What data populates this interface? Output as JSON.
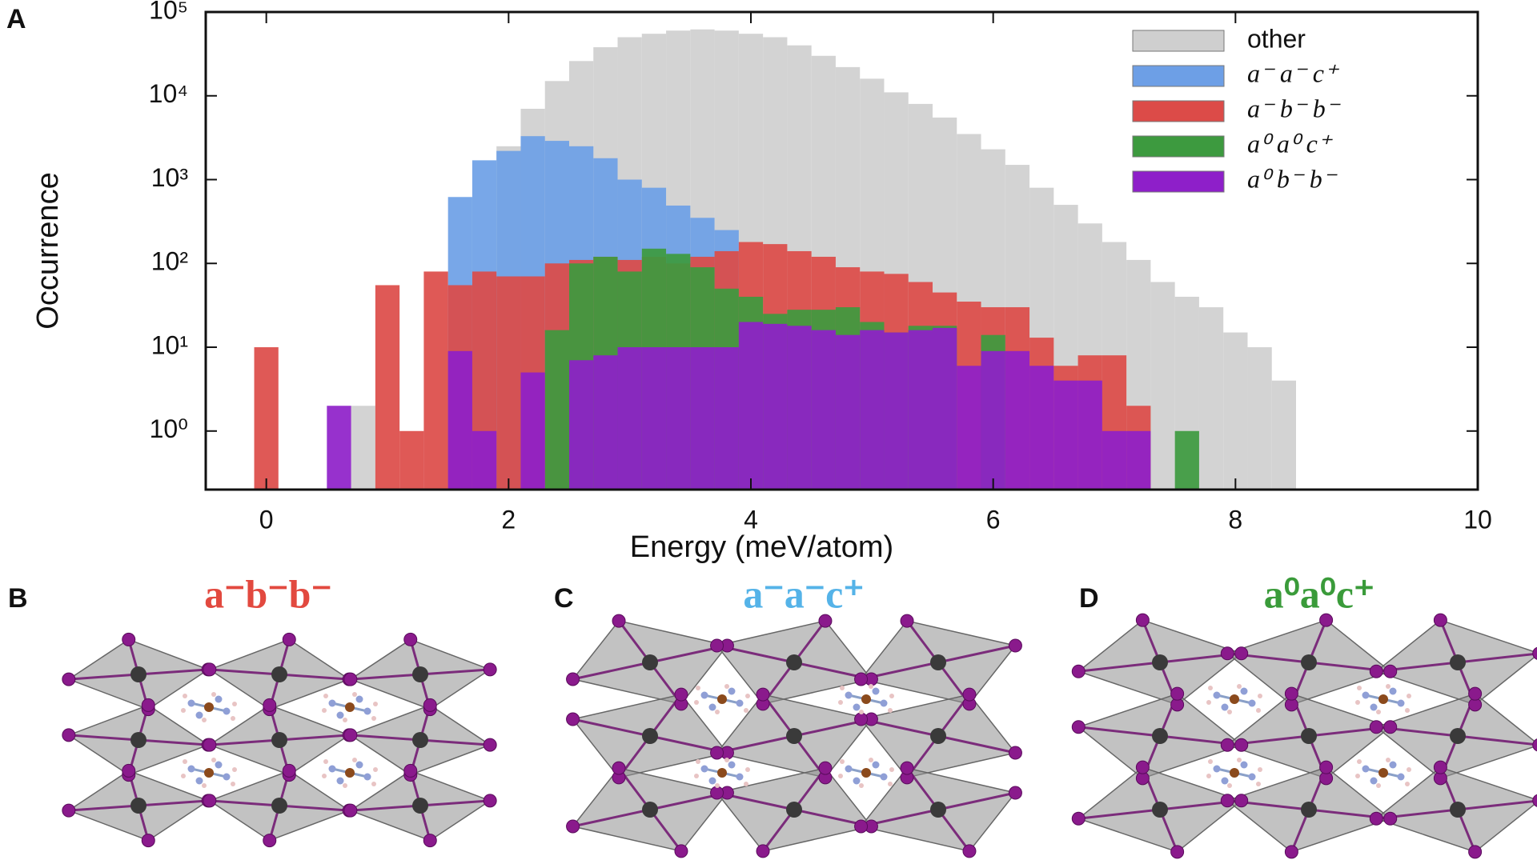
{
  "chart_data": {
    "type": "histogram",
    "panel_label": "A",
    "xlabel": "Energy (meV/atom)",
    "ylabel": "Occurrence",
    "xlim": [
      -0.5,
      10
    ],
    "xticks": [
      0,
      2,
      4,
      6,
      8,
      10
    ],
    "ylim": [
      0.2,
      100000
    ],
    "y_scale": "log",
    "yticks": [
      {
        "value": 1,
        "label": "10⁰"
      },
      {
        "value": 10,
        "label": "10¹"
      },
      {
        "value": 100,
        "label": "10²"
      },
      {
        "value": 1000,
        "label": "10³"
      },
      {
        "value": 10000,
        "label": "10⁴"
      },
      {
        "value": 100000,
        "label": "10⁵"
      }
    ],
    "legend": "upper right",
    "bins": [
      -0.1,
      0.1,
      0.3,
      0.5,
      0.7,
      0.9,
      1.1,
      1.3,
      1.5,
      1.7,
      1.9,
      2.1,
      2.3,
      2.5,
      2.7,
      2.9,
      3.1,
      3.3,
      3.5,
      3.7,
      3.9,
      4.1,
      4.3,
      4.5,
      4.7,
      4.9,
      5.1,
      5.3,
      5.5,
      5.7,
      5.9,
      6.1,
      6.3,
      6.5,
      6.7,
      6.9,
      7.1,
      7.3,
      7.5,
      7.7,
      7.9,
      8.1,
      8.3,
      8.5
    ],
    "series": [
      {
        "name": "other",
        "color": "#cfcfcf",
        "values": [
          null,
          null,
          null,
          null,
          2,
          null,
          null,
          null,
          null,
          null,
          2500,
          7000,
          15000,
          26000,
          38000,
          50000,
          55000,
          60000,
          62000,
          60000,
          55000,
          50000,
          40000,
          30000,
          22000,
          16000,
          11000,
          8000,
          5500,
          3500,
          2300,
          1500,
          800,
          500,
          300,
          180,
          110,
          60,
          40,
          30,
          15,
          10,
          4
        ]
      },
      {
        "name": "a⁻ a⁻ c⁺",
        "color": "#6d9fe6",
        "values": [
          null,
          null,
          null,
          null,
          null,
          null,
          null,
          null,
          620,
          1700,
          2200,
          3300,
          2900,
          2500,
          1800,
          1000,
          800,
          490,
          350,
          250,
          null,
          null,
          null,
          null,
          null,
          null,
          null,
          null,
          null,
          null,
          null,
          null,
          null,
          null,
          null,
          null,
          null,
          null,
          null,
          null,
          null,
          null,
          null
        ]
      },
      {
        "name": "a⁻ b⁻ b⁻",
        "color": "#dc4b48",
        "values": [
          10,
          null,
          null,
          null,
          null,
          55,
          1,
          80,
          55,
          80,
          70,
          70,
          100,
          110,
          120,
          110,
          120,
          100,
          120,
          140,
          180,
          170,
          140,
          120,
          90,
          80,
          75,
          60,
          45,
          35,
          30,
          30,
          13,
          6,
          8,
          8,
          2,
          null,
          null,
          null,
          null,
          null,
          null
        ]
      },
      {
        "name": "a⁰ a⁰ c⁺",
        "color": "#3d9a3f",
        "values": [
          null,
          null,
          null,
          null,
          null,
          null,
          null,
          null,
          null,
          null,
          null,
          null,
          16,
          100,
          120,
          80,
          150,
          130,
          90,
          50,
          40,
          25,
          28,
          28,
          30,
          20,
          15,
          18,
          18,
          null,
          14,
          null,
          null,
          null,
          null,
          null,
          null,
          null,
          1,
          null,
          null,
          null,
          null
        ]
      },
      {
        "name": "a⁰ b⁻ b⁻",
        "color": "#8e1fc9",
        "values": [
          null,
          null,
          null,
          2,
          null,
          null,
          null,
          null,
          9,
          1,
          null,
          5,
          null,
          7,
          8,
          10,
          10,
          10,
          10,
          10,
          20,
          19,
          18,
          16,
          14,
          16,
          15,
          16,
          17,
          6,
          9,
          9,
          6,
          4,
          4,
          1,
          1,
          null,
          null,
          null,
          null,
          null,
          null
        ]
      }
    ]
  },
  "panels": [
    {
      "letter": "B",
      "title": "a⁻b⁻b⁻",
      "color": "#e2493f"
    },
    {
      "letter": "C",
      "title": "a⁻a⁻c⁺",
      "color": "#55b3e8"
    },
    {
      "letter": "D",
      "title": "a⁰a⁰c⁺",
      "color": "#3a9b3a"
    }
  ]
}
